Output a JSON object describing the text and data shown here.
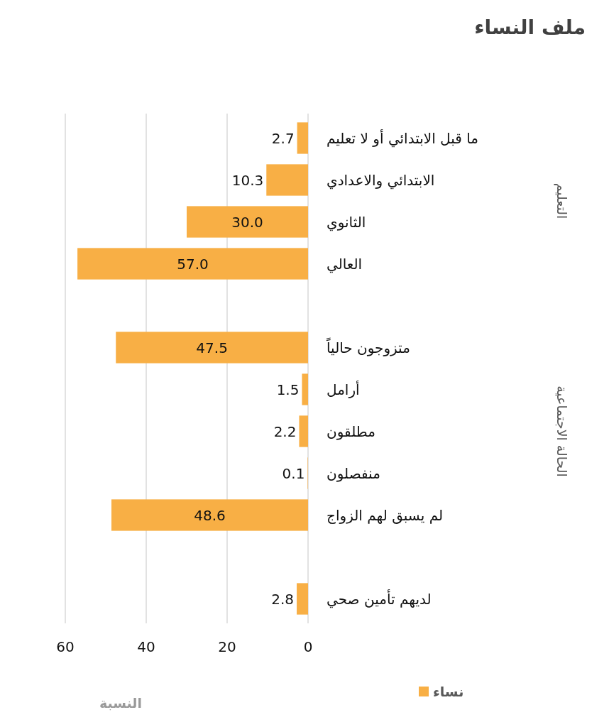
{
  "chart_data": {
    "type": "bar",
    "orientation": "horizontal",
    "title": "ملف النساء",
    "xlabel": "النسبة",
    "categories": [
      "ما قبل الابتدائي أو لا تعليم",
      "الابتدائي والاعدادي",
      "الثانوي",
      "العالي",
      null,
      "متزوجون حالياً",
      "أرامل",
      "مطلقون",
      "منفصلون",
      "لم يسبق لهم الزواج",
      null,
      "لديهم تأمين صحي"
    ],
    "series": [
      {
        "name": "نساء",
        "color": "#f8af45",
        "values": [
          2.7,
          10.3,
          30.0,
          57.0,
          null,
          47.5,
          1.5,
          2.2,
          0.1,
          48.6,
          null,
          2.8
        ],
        "value_labels": [
          "2.7",
          "10.3",
          "30.0",
          "57.0",
          null,
          "47.5",
          "1.5",
          "2.2",
          "0.1",
          "48.6",
          null,
          "2.8"
        ]
      }
    ],
    "xlim": [
      60,
      0
    ],
    "xticks": [
      60,
      40,
      20,
      0
    ],
    "grid": "x",
    "legend": "bottom",
    "annotations": [
      "التعليم",
      "الحالة الاجتماعية"
    ]
  }
}
